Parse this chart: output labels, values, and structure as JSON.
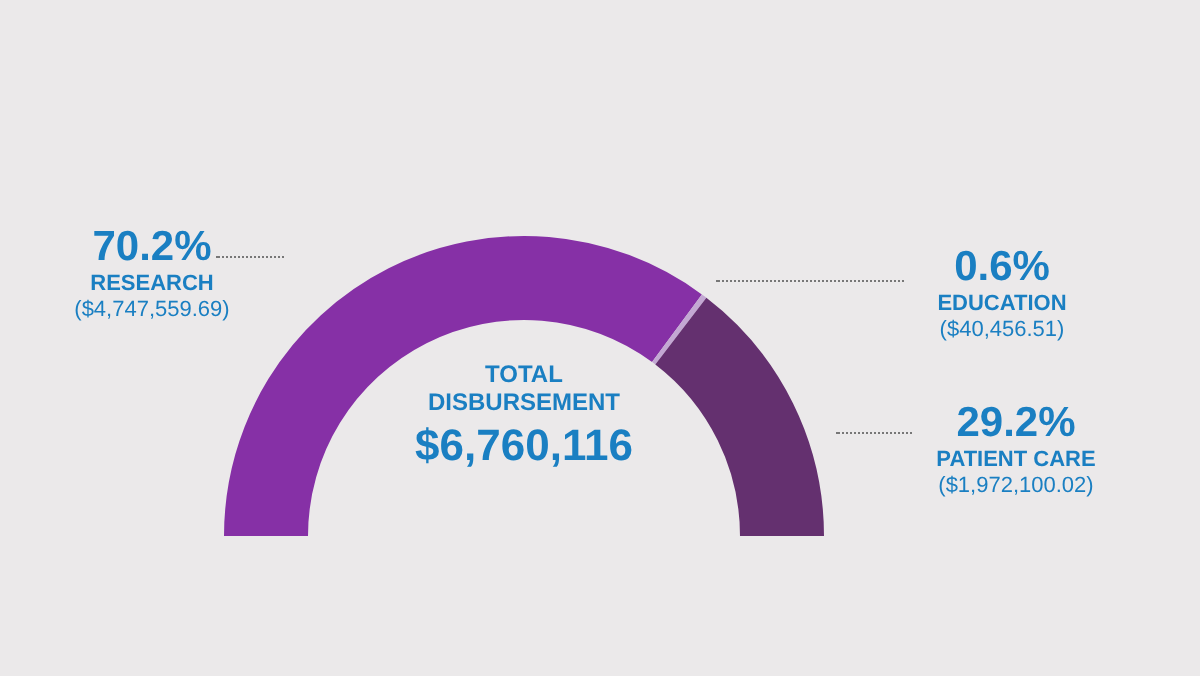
{
  "chart_data": {
    "type": "donut",
    "categories": [
      "RESEARCH",
      "EDUCATION",
      "PATIENT CARE"
    ],
    "values": [
      70.2,
      0.6,
      29.2
    ],
    "colors": [
      "#8630a6",
      "#c3a8d3",
      "#64306f"
    ],
    "value_labels": [
      "70.2%",
      "0.6%",
      "29.2%"
    ],
    "annotations": [
      "($4,747,559.69)",
      "($40,456.51)",
      "($1,972,100.02)",
      "TOTAL DISBURSEMENT",
      "$6,760,116"
    ],
    "legend": false
  }
}
